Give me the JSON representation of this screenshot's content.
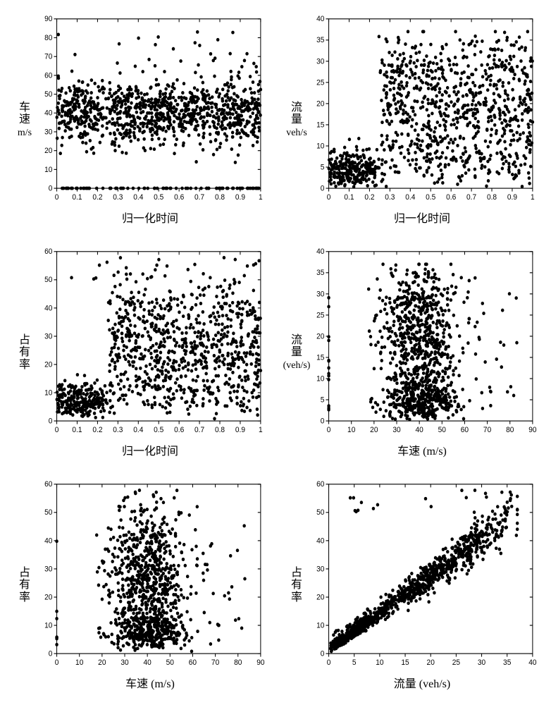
{
  "layout": {
    "rows": 3,
    "cols": 2,
    "bg": "#ffffff"
  },
  "panels": [
    {
      "id": "p1",
      "ylabel_lines": [
        "车",
        "速"
      ],
      "yunit": "m/s",
      "xlabel": "归一化时间",
      "xlim": [
        0,
        1
      ],
      "xticks": [
        0,
        0.1,
        0.2,
        0.3,
        0.4,
        0.5,
        0.6,
        0.7,
        0.8,
        0.9,
        1
      ],
      "ylim": [
        0,
        90
      ],
      "yticks": [
        0,
        10,
        20,
        30,
        40,
        50,
        60,
        70,
        80,
        90
      ],
      "marker_color": "#000000",
      "marker_size": 2.2,
      "pattern": "speed_vs_time"
    },
    {
      "id": "p2",
      "ylabel_lines": [
        "流",
        "量"
      ],
      "yunit": "veh/s",
      "xlabel": "归一化时间",
      "xlim": [
        0,
        1
      ],
      "xticks": [
        0,
        0.1,
        0.2,
        0.3,
        0.4,
        0.5,
        0.6,
        0.7,
        0.8,
        0.9,
        1
      ],
      "ylim": [
        0,
        40
      ],
      "yticks": [
        0,
        5,
        10,
        15,
        20,
        25,
        30,
        35,
        40
      ],
      "marker_color": "#000000",
      "marker_size": 2.2,
      "pattern": "flow_vs_time"
    },
    {
      "id": "p3",
      "ylabel_lines": [
        "占",
        "有",
        "率"
      ],
      "yunit": "",
      "xlabel": "归一化时间",
      "xlim": [
        0,
        1
      ],
      "xticks": [
        0,
        0.1,
        0.2,
        0.3,
        0.4,
        0.5,
        0.6,
        0.7,
        0.8,
        0.9,
        1
      ],
      "ylim": [
        0,
        60
      ],
      "yticks": [
        0,
        10,
        20,
        30,
        40,
        50,
        60
      ],
      "marker_color": "#000000",
      "marker_size": 2.2,
      "pattern": "occ_vs_time"
    },
    {
      "id": "p4",
      "ylabel_lines": [
        "流",
        "量"
      ],
      "yunit": "(veh/s)",
      "xlabel": "车速  (m/s)",
      "xlim": [
        0,
        90
      ],
      "xticks": [
        0,
        10,
        20,
        30,
        40,
        50,
        60,
        70,
        80,
        90
      ],
      "ylim": [
        0,
        40
      ],
      "yticks": [
        0,
        5,
        10,
        15,
        20,
        25,
        30,
        35,
        40
      ],
      "marker_color": "#000000",
      "marker_size": 2.2,
      "pattern": "flow_vs_speed"
    },
    {
      "id": "p5",
      "ylabel_lines": [
        "占",
        "有",
        "率"
      ],
      "yunit": "",
      "xlabel": "车速  (m/s)",
      "xlim": [
        0,
        90
      ],
      "xticks": [
        0,
        10,
        20,
        30,
        40,
        50,
        60,
        70,
        80,
        90
      ],
      "ylim": [
        0,
        60
      ],
      "yticks": [
        0,
        10,
        20,
        30,
        40,
        50,
        60
      ],
      "marker_color": "#000000",
      "marker_size": 2.2,
      "pattern": "occ_vs_speed"
    },
    {
      "id": "p6",
      "ylabel_lines": [
        "占",
        "有",
        "率"
      ],
      "yunit": "",
      "xlabel": "流量  (veh/s)",
      "xlim": [
        0,
        40
      ],
      "xticks": [
        0,
        5,
        10,
        15,
        20,
        25,
        30,
        35,
        40
      ],
      "ylim": [
        0,
        60
      ],
      "yticks": [
        0,
        10,
        20,
        30,
        40,
        50,
        60
      ],
      "marker_color": "#000000",
      "marker_size": 2.2,
      "pattern": "occ_vs_flow"
    }
  ],
  "n_points_per_panel": 1100,
  "seed": 42
}
